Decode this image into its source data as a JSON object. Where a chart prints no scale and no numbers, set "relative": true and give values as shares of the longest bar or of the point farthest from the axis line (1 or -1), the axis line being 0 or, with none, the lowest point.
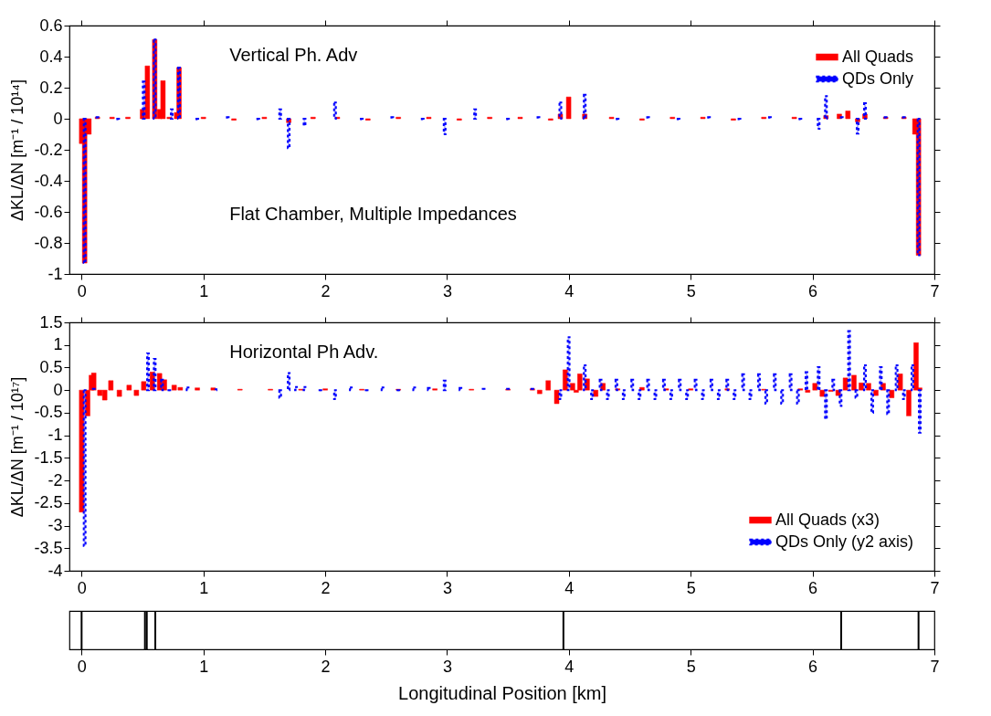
{
  "chart_data": [
    {
      "type": "bar",
      "ylabel": "ΔKL/ΔN  [m⁻¹ / 10¹⁴]",
      "annotations": [
        "Vertical Ph. Adv",
        "Flat Chamber, Multiple Impedances"
      ],
      "xlim": [
        -0.1,
        7
      ],
      "xticks": [
        0,
        1,
        2,
        3,
        4,
        5,
        6,
        7
      ],
      "ylim": [
        -1,
        0.6
      ],
      "yticks": [
        -1,
        -0.8,
        -0.6,
        -0.4,
        -0.2,
        0,
        0.2,
        0.4,
        0.6
      ],
      "legend": "top right",
      "series": [
        {
          "name": "All Quads",
          "color": "#ff0000",
          "line_style": "solid",
          "x": [
            0,
            0.025,
            0.06,
            0.13,
            0.25,
            0.38,
            0.5,
            0.54,
            0.6,
            0.64,
            0.668,
            0.72,
            0.78,
            0.8,
            1.0,
            1.25,
            1.5,
            1.7,
            1.9,
            2.1,
            2.35,
            2.6,
            2.85,
            3.1,
            3.35,
            3.6,
            3.85,
            3.93,
            3.998,
            4.13,
            4.35,
            4.6,
            4.85,
            5.1,
            5.35,
            5.6,
            5.85,
            6.11,
            6.22,
            6.29,
            6.37,
            6.43,
            6.6,
            6.75,
            6.84,
            6.87
          ],
          "values": [
            -0.16,
            -0.93,
            -0.1,
            0.01,
            0.01,
            0.01,
            0.06,
            0.34,
            0.51,
            0.06,
            0.245,
            0.01,
            0.04,
            0.33,
            0.01,
            -0.01,
            0.01,
            -0.025,
            0.01,
            0.01,
            -0.01,
            0.01,
            0.01,
            -0.01,
            0.01,
            0.01,
            -0.01,
            0.03,
            0.14,
            0.03,
            0.01,
            -0.01,
            0.01,
            0.01,
            -0.01,
            0.01,
            0.01,
            0.02,
            0.03,
            0.05,
            -0.02,
            0.03,
            0.01,
            0.01,
            -0.1,
            -0.88
          ]
        },
        {
          "name": "QDs Only",
          "color": "#0000ff",
          "line_style": "dotted",
          "x": [
            0.025,
            0.13,
            0.3,
            0.51,
            0.6,
            0.74,
            0.8,
            0.95,
            1.2,
            1.45,
            1.63,
            1.7,
            1.83,
            2.08,
            2.3,
            2.55,
            2.8,
            2.98,
            3.23,
            3.5,
            3.75,
            3.93,
            4.13,
            4.4,
            4.65,
            4.9,
            5.15,
            5.4,
            5.65,
            5.9,
            6.05,
            6.11,
            6.24,
            6.37,
            6.43,
            6.6,
            6.75,
            6.87
          ],
          "values": [
            -0.93,
            0.01,
            -0.01,
            0.24,
            0.51,
            0.06,
            0.33,
            -0.01,
            0.01,
            -0.01,
            0.06,
            -0.19,
            -0.045,
            0.105,
            -0.01,
            0.01,
            -0.01,
            -0.1,
            0.06,
            -0.01,
            0.01,
            0.105,
            0.155,
            -0.01,
            0.01,
            -0.01,
            0.01,
            -0.01,
            0.01,
            -0.01,
            -0.065,
            0.145,
            0.01,
            -0.095,
            0.1,
            0.01,
            0.01,
            -0.88
          ]
        }
      ]
    },
    {
      "type": "bar",
      "ylabel": "ΔKL/ΔN  [m⁻¹ / 10¹⁷]",
      "annotations": [
        "Horizontal Ph Adv."
      ],
      "xlim": [
        -0.1,
        7
      ],
      "xticks": [
        0,
        1,
        2,
        3,
        4,
        5,
        6,
        7
      ],
      "ylim": [
        -4,
        1.5
      ],
      "yticks": [
        -4,
        -3.5,
        -3,
        -2.5,
        -2,
        -1.5,
        -1,
        -0.5,
        0,
        0.5,
        1,
        1.5
      ],
      "legend": "bottom right",
      "series": [
        {
          "name": "All Quads (x3)",
          "color": "#ff0000",
          "line_style": "solid",
          "x": [
            0,
            0.05,
            0.08,
            0.1,
            0.15,
            0.19,
            0.24,
            0.31,
            0.39,
            0.45,
            0.51,
            0.58,
            0.64,
            0.68,
            0.76,
            0.81,
            0.95,
            1.08,
            1.3,
            1.55,
            1.8,
            2.0,
            2.3,
            2.6,
            2.9,
            3.2,
            3.5,
            3.7,
            3.76,
            3.83,
            3.9,
            3.97,
            4.03,
            4.06,
            4.09,
            4.15,
            4.22,
            4.28,
            4.4,
            4.6,
            4.8,
            5.0,
            5.3,
            5.6,
            5.9,
            5.96,
            6.02,
            6.08,
            6.15,
            6.21,
            6.27,
            6.34,
            6.4,
            6.46,
            6.52,
            6.58,
            6.65,
            6.72,
            6.79,
            6.85,
            6.88
          ],
          "values": [
            -2.7,
            -0.57,
            0.33,
            0.38,
            -0.12,
            -0.22,
            0.21,
            -0.14,
            0.11,
            -0.12,
            0.19,
            0.4,
            0.37,
            0.23,
            0.11,
            0.06,
            0.05,
            0.05,
            0.02,
            0.02,
            0.02,
            0.03,
            0.02,
            0.02,
            0.03,
            0.02,
            0.02,
            0.03,
            -0.08,
            0.21,
            -0.3,
            0.45,
            0.15,
            -0.05,
            0.36,
            0.25,
            -0.14,
            0.15,
            0.03,
            0.06,
            0.03,
            0.03,
            0.03,
            0.02,
            0.03,
            -0.05,
            0.15,
            -0.14,
            -0.03,
            -0.12,
            0.27,
            0.33,
            0.16,
            0.15,
            -0.12,
            0.15,
            -0.17,
            0.36,
            -0.57,
            1.05,
            0.05
          ]
        },
        {
          "name": "QDs Only (y2 axis)",
          "color": "#0000ff",
          "line_style": "dotted",
          "x": [
            0.025,
            0.1,
            0.545,
            0.6,
            0.66,
            0.72,
            0.87,
            1.1,
            1.63,
            1.7,
            1.76,
            1.83,
            1.96,
            2.08,
            2.21,
            2.34,
            2.47,
            2.6,
            2.73,
            2.85,
            2.98,
            3.11,
            3.3,
            3.5,
            3.7,
            3.93,
            3.998,
            4.13,
            4.19,
            4.26,
            4.32,
            4.39,
            4.45,
            4.52,
            4.58,
            4.65,
            4.71,
            4.78,
            4.84,
            4.91,
            4.97,
            5.04,
            5.1,
            5.17,
            5.23,
            5.3,
            5.36,
            5.43,
            5.49,
            5.56,
            5.62,
            5.69,
            5.75,
            5.82,
            5.88,
            5.95,
            6.05,
            6.11,
            6.17,
            6.23,
            6.3,
            6.36,
            6.43,
            6.49,
            6.56,
            6.62,
            6.69,
            6.75,
            6.82,
            6.88
          ],
          "values": [
            -3.45,
            0.03,
            0.81,
            0.69,
            0.23,
            -0.03,
            0.06,
            0.02,
            -0.17,
            0.38,
            0.07,
            0.07,
            -0.03,
            -0.2,
            0.06,
            -0.03,
            0.06,
            -0.03,
            0.06,
            0.05,
            0.21,
            0.05,
            0.03,
            0.03,
            0.03,
            -0.2,
            1.17,
            0.55,
            -0.2,
            0.23,
            -0.2,
            0.23,
            -0.2,
            0.23,
            -0.2,
            0.23,
            -0.2,
            0.23,
            -0.2,
            0.23,
            -0.2,
            0.23,
            -0.2,
            0.23,
            -0.2,
            0.23,
            -0.2,
            0.35,
            -0.2,
            0.35,
            -0.3,
            0.35,
            -0.3,
            0.35,
            -0.3,
            0.4,
            0.51,
            -0.64,
            0.23,
            -0.35,
            1.31,
            -0.17,
            0.55,
            -0.5,
            0.51,
            -0.53,
            0.55,
            -0.2,
            0.55,
            -0.94
          ]
        }
      ]
    },
    {
      "type": "bar",
      "relative": true,
      "xlabel": "Longitudinal Position [km]",
      "xlim": [
        -0.1,
        7
      ],
      "xticks": [
        0,
        1,
        2,
        3,
        4,
        5,
        6,
        7
      ],
      "tick_labels": "x",
      "series": [
        {
          "color": "#000000",
          "x": [
            0,
            0.52,
            0.535,
            0.605,
            3.955,
            6.235,
            6.87
          ],
          "values": [
            1,
            1,
            1,
            1,
            1,
            1,
            1
          ]
        }
      ]
    }
  ]
}
